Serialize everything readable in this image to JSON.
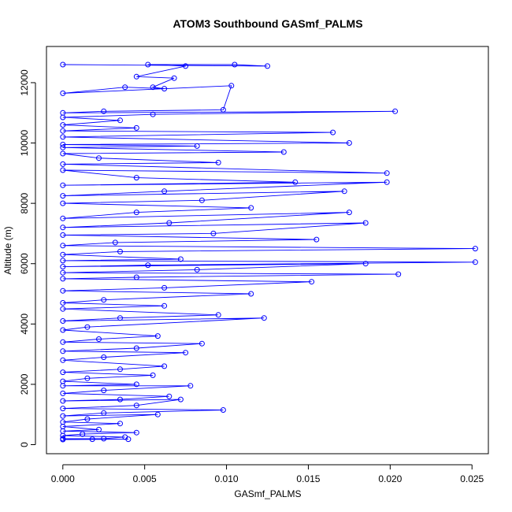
{
  "chart_data": {
    "type": "scatter",
    "title": "ATOM3 Southbound GASmf_PALMS",
    "xlabel": "GASmf_PALMS",
    "ylabel": "Altitude (m)",
    "xlim": [
      -0.001,
      0.026
    ],
    "ylim": [
      -300,
      13200
    ],
    "x_ticks": [
      0.0,
      0.005,
      0.01,
      0.015,
      0.02,
      0.025
    ],
    "x_tick_labels": [
      "0.000",
      "0.005",
      "0.010",
      "0.015",
      "0.020",
      "0.025"
    ],
    "y_ticks": [
      0,
      2000,
      4000,
      6000,
      8000,
      10000,
      12000
    ],
    "y_tick_labels": [
      "0",
      "2000",
      "4000",
      "6000",
      "8000",
      "10000",
      "12000"
    ],
    "grid": false,
    "legend": "none",
    "series": [
      {
        "color": "#0000ff",
        "markers": "open-circle",
        "connected": true,
        "points": [
          [
            0.0,
            12600
          ],
          [
            0.0125,
            12550
          ],
          [
            0.0105,
            12600
          ],
          [
            0.0052,
            12600
          ],
          [
            0.0075,
            12550
          ],
          [
            0.0045,
            12200
          ],
          [
            0.0068,
            12150
          ],
          [
            0.0055,
            11850
          ],
          [
            0.0062,
            11800
          ],
          [
            0.0038,
            11850
          ],
          [
            0.0,
            11650
          ],
          [
            0.0103,
            11900
          ],
          [
            0.0098,
            11100
          ],
          [
            0.0025,
            11050
          ],
          [
            0.0,
            11000
          ],
          [
            0.0203,
            11050
          ],
          [
            0.0055,
            10950
          ],
          [
            0.0,
            10850
          ],
          [
            0.0035,
            10750
          ],
          [
            0.0,
            10600
          ],
          [
            0.0045,
            10500
          ],
          [
            0.0,
            10400
          ],
          [
            0.0165,
            10350
          ],
          [
            0.0,
            10200
          ],
          [
            0.0175,
            10000
          ],
          [
            0.0,
            9950
          ],
          [
            0.0082,
            9900
          ],
          [
            0.0,
            9850
          ],
          [
            0.0135,
            9700
          ],
          [
            0.0,
            9650
          ],
          [
            0.0022,
            9500
          ],
          [
            0.0095,
            9350
          ],
          [
            0.0,
            9300
          ],
          [
            0.0198,
            9000
          ],
          [
            0.0,
            9100
          ],
          [
            0.0045,
            8850
          ],
          [
            0.0142,
            8700
          ],
          [
            0.0,
            8600
          ],
          [
            0.0198,
            8700
          ],
          [
            0.0062,
            8400
          ],
          [
            0.0,
            8250
          ],
          [
            0.0172,
            8400
          ],
          [
            0.0085,
            8100
          ],
          [
            0.0,
            8000
          ],
          [
            0.0115,
            7850
          ],
          [
            0.0045,
            7700
          ],
          [
            0.0,
            7500
          ],
          [
            0.0175,
            7700
          ],
          [
            0.0065,
            7350
          ],
          [
            0.0,
            7200
          ],
          [
            0.0185,
            7350
          ],
          [
            0.0092,
            7000
          ],
          [
            0.0,
            6950
          ],
          [
            0.0155,
            6800
          ],
          [
            0.0032,
            6700
          ],
          [
            0.0,
            6600
          ],
          [
            0.0252,
            6500
          ],
          [
            0.0035,
            6400
          ],
          [
            0.0,
            6300
          ],
          [
            0.0072,
            6150
          ],
          [
            0.0,
            6100
          ],
          [
            0.0252,
            6050
          ],
          [
            0.0052,
            5950
          ],
          [
            0.0,
            5900
          ],
          [
            0.0185,
            6000
          ],
          [
            0.0082,
            5800
          ],
          [
            0.0,
            5700
          ],
          [
            0.0205,
            5650
          ],
          [
            0.0045,
            5550
          ],
          [
            0.0,
            5500
          ],
          [
            0.0152,
            5400
          ],
          [
            0.0062,
            5200
          ],
          [
            0.0,
            5100
          ],
          [
            0.0115,
            5000
          ],
          [
            0.0025,
            4800
          ],
          [
            0.0,
            4700
          ],
          [
            0.0062,
            4600
          ],
          [
            0.0,
            4500
          ],
          [
            0.0095,
            4300
          ],
          [
            0.0035,
            4200
          ],
          [
            0.0,
            4100
          ],
          [
            0.0123,
            4200
          ],
          [
            0.0015,
            3900
          ],
          [
            0.0,
            3800
          ],
          [
            0.0058,
            3600
          ],
          [
            0.0022,
            3500
          ],
          [
            0.0,
            3400
          ],
          [
            0.0085,
            3350
          ],
          [
            0.0045,
            3200
          ],
          [
            0.0,
            3100
          ],
          [
            0.0075,
            3050
          ],
          [
            0.0025,
            2900
          ],
          [
            0.0,
            2800
          ],
          [
            0.0062,
            2600
          ],
          [
            0.0035,
            2500
          ],
          [
            0.0,
            2400
          ],
          [
            0.0055,
            2300
          ],
          [
            0.0015,
            2200
          ],
          [
            0.0,
            2100
          ],
          [
            0.0045,
            2000
          ],
          [
            0.0,
            1950
          ],
          [
            0.0078,
            1950
          ],
          [
            0.0025,
            1800
          ],
          [
            0.0,
            1700
          ],
          [
            0.0065,
            1600
          ],
          [
            0.0035,
            1500
          ],
          [
            0.0,
            1450
          ],
          [
            0.0072,
            1500
          ],
          [
            0.0045,
            1300
          ],
          [
            0.0,
            1200
          ],
          [
            0.0098,
            1150
          ],
          [
            0.0025,
            1050
          ],
          [
            0.0,
            950
          ],
          [
            0.0058,
            1000
          ],
          [
            0.0015,
            850
          ],
          [
            0.0,
            750
          ],
          [
            0.0035,
            700
          ],
          [
            0.0,
            600
          ],
          [
            0.0022,
            500
          ],
          [
            0.0,
            450
          ],
          [
            0.0045,
            400
          ],
          [
            0.0012,
            350
          ],
          [
            0.0,
            300
          ],
          [
            0.0038,
            250
          ],
          [
            0.0025,
            200
          ],
          [
            0.0,
            200
          ],
          [
            0.0018,
            180
          ],
          [
            0.004,
            180
          ],
          [
            0.0,
            170
          ]
        ]
      }
    ]
  }
}
